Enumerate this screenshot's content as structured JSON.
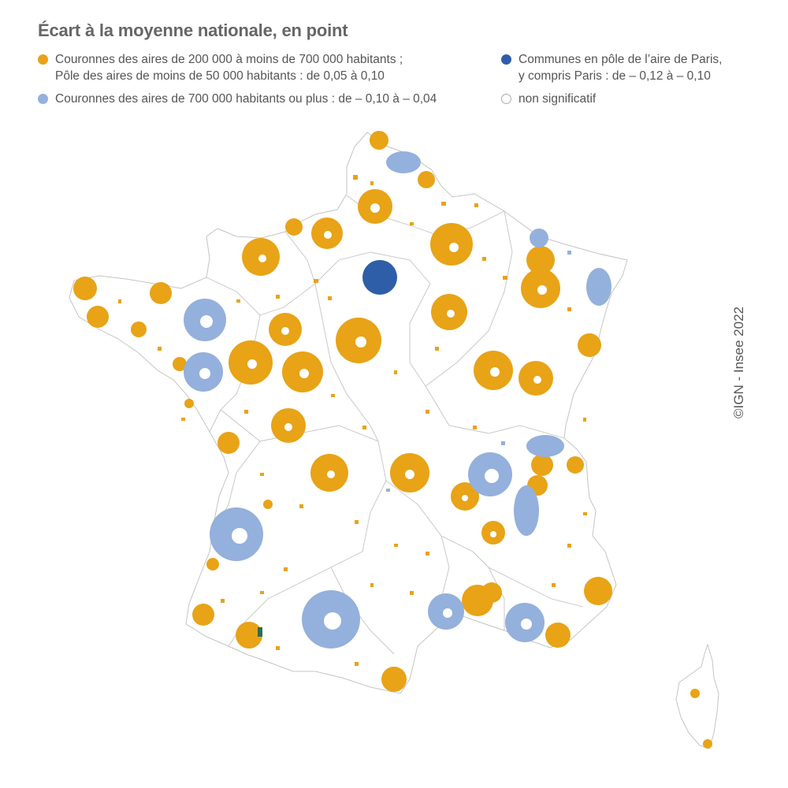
{
  "title": "Écart à la moyenne nationale, en point",
  "legend": [
    {
      "id": "couronnes-moyennes",
      "color": "#e8a317",
      "filled": true,
      "line1": "Couronnes des aires de 200 000 à moins de 700 000 habitants ;",
      "line2": "Pôle des aires de moins de 50 000 habitants : de 0,05 à 0,10"
    },
    {
      "id": "paris-pole",
      "color": "#2f5ea8",
      "filled": true,
      "line1": "Communes en pôle de l’aire de Paris,",
      "line2": "y compris Paris : de – 0,12 à – 0,10"
    },
    {
      "id": "couronnes-grandes",
      "color": "#94b0dc",
      "filled": true,
      "line1": "Couronnes des aires de 700 000 habitants ou plus : de – 0,10 à – 0,04",
      "line2": ""
    },
    {
      "id": "non-significatif",
      "color": "#ffffff",
      "filled": false,
      "line1": "non significatif",
      "line2": ""
    }
  ],
  "credit": "©IGN - Insee 2022",
  "colors": {
    "orange": "#e8a317",
    "lightblue": "#94b0dc",
    "darkblue": "#2f5ea8",
    "border": "#c4c4c4"
  }
}
